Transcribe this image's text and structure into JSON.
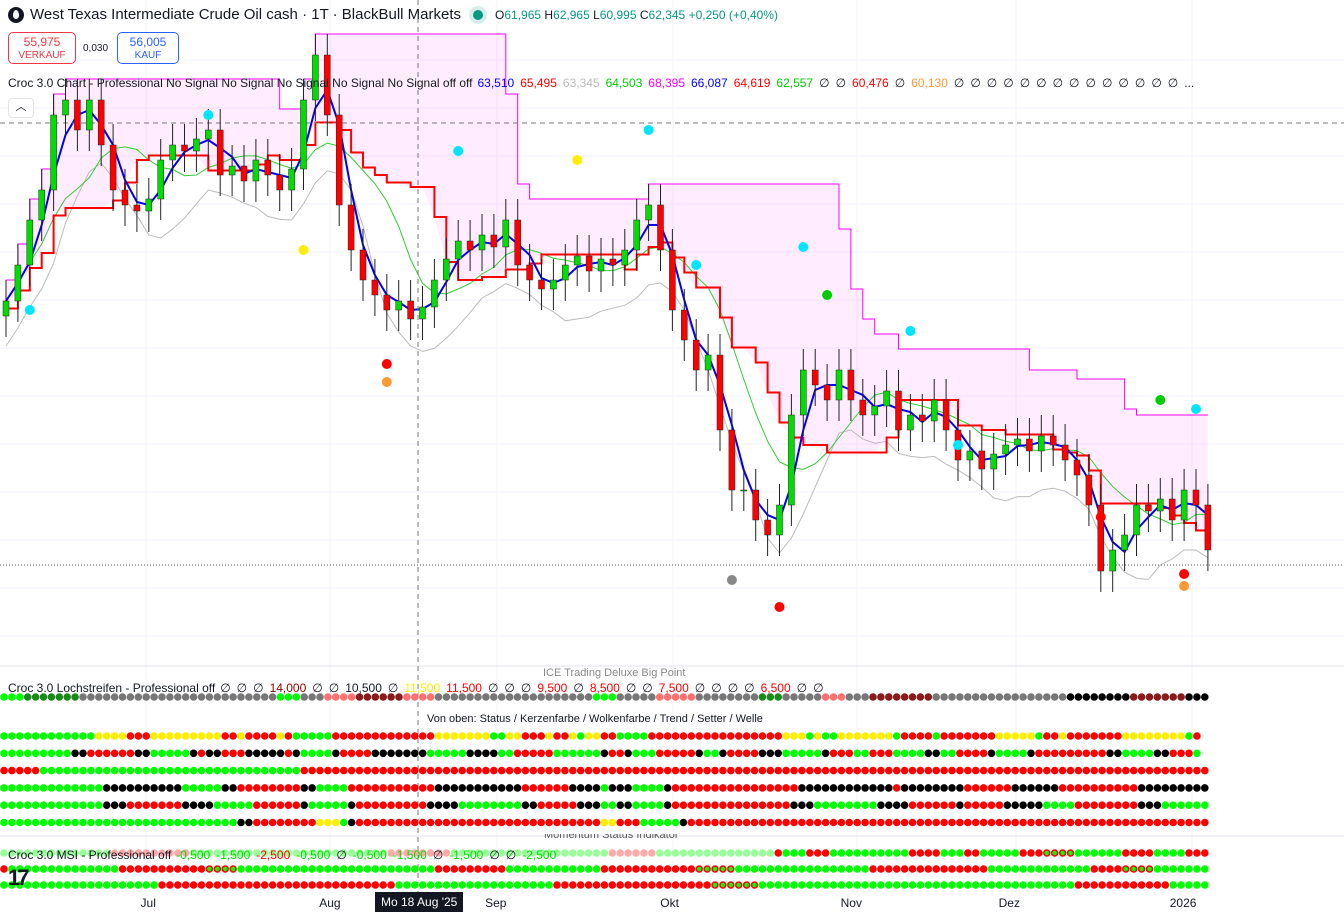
{
  "header": {
    "title": "West Texas Intermediate Crude Oil cash · 1T · BlackBull Markets",
    "ohlc": {
      "o_label": "O",
      "o": "61,965",
      "h_label": "H",
      "h": "62,965",
      "l_label": "L",
      "l": "60,995",
      "c_label": "C",
      "c": "62,345",
      "change": "+0,250 (+0,40%)"
    },
    "sell": {
      "price": "55,975",
      "label": "VERKAUF"
    },
    "spread": "0,030",
    "buy": {
      "price": "56,005",
      "label": "KAUF"
    }
  },
  "collapse_glyph": "︿",
  "tv_logo": "17",
  "indicators": {
    "chart": {
      "name": "Croc 3.0 Chart - Professional No Signal No Signal No Signal No Signal No Signal off off",
      "values": [
        {
          "v": "63,510",
          "color": "#0000ff"
        },
        {
          "v": "65,495",
          "color": "#ff0000"
        },
        {
          "v": "63,345",
          "color": "#bbbbbb"
        },
        {
          "v": "64,503",
          "color": "#00cc00"
        },
        {
          "v": "68,395",
          "color": "#ff00ff"
        },
        {
          "v": "66,087",
          "color": "#0000ff"
        },
        {
          "v": "64,619",
          "color": "#ff0000"
        },
        {
          "v": "62,557",
          "color": "#00cc00"
        },
        {
          "v": "∅",
          "color": "#131722"
        },
        {
          "v": "∅",
          "color": "#131722"
        },
        {
          "v": "60,476",
          "color": "#ff0000"
        },
        {
          "v": "∅",
          "color": "#131722"
        },
        {
          "v": "60,130",
          "color": "#ff9933"
        },
        {
          "v": "∅",
          "color": "#131722"
        },
        {
          "v": "∅",
          "color": "#131722"
        },
        {
          "v": "∅",
          "color": "#131722"
        },
        {
          "v": "∅",
          "color": "#131722"
        },
        {
          "v": "∅",
          "color": "#131722"
        },
        {
          "v": "∅",
          "color": "#131722"
        },
        {
          "v": "∅",
          "color": "#131722"
        },
        {
          "v": "∅",
          "color": "#131722"
        },
        {
          "v": "∅",
          "color": "#131722"
        },
        {
          "v": "∅",
          "color": "#131722"
        },
        {
          "v": "∅",
          "color": "#131722"
        },
        {
          "v": "∅",
          "color": "#131722"
        },
        {
          "v": "∅",
          "color": "#131722"
        },
        {
          "v": "∅",
          "color": "#131722"
        },
        {
          "v": "...",
          "color": "#131722"
        }
      ]
    },
    "lochstreifen": {
      "name": "Croc 3.0 Lochstreifen - Professional off",
      "values": [
        {
          "v": "∅",
          "color": "#131722"
        },
        {
          "v": "∅",
          "color": "#131722"
        },
        {
          "v": "∅",
          "color": "#131722"
        },
        {
          "v": "14,000",
          "color": "#8b0000"
        },
        {
          "v": "∅",
          "color": "#131722"
        },
        {
          "v": "∅",
          "color": "#131722"
        },
        {
          "v": "10,500",
          "color": "#131722"
        },
        {
          "v": "∅",
          "color": "#131722"
        },
        {
          "v": "11,500",
          "color": "#ffee00"
        },
        {
          "v": "11,500",
          "color": "#ff0000"
        },
        {
          "v": "∅",
          "color": "#131722"
        },
        {
          "v": "∅",
          "color": "#131722"
        },
        {
          "v": "∅",
          "color": "#131722"
        },
        {
          "v": "9,500",
          "color": "#ff0000"
        },
        {
          "v": "∅",
          "color": "#131722"
        },
        {
          "v": "8,500",
          "color": "#ff0000"
        },
        {
          "v": "∅",
          "color": "#131722"
        },
        {
          "v": "∅",
          "color": "#131722"
        },
        {
          "v": "7,500",
          "color": "#ff0000"
        },
        {
          "v": "∅",
          "color": "#131722"
        },
        {
          "v": "∅",
          "color": "#131722"
        },
        {
          "v": "∅",
          "color": "#131722"
        },
        {
          "v": "∅",
          "color": "#131722"
        },
        {
          "v": "6,500",
          "color": "#ff0000"
        },
        {
          "v": "∅",
          "color": "#131722"
        },
        {
          "v": "∅",
          "color": "#131722"
        }
      ],
      "overlay_title": "ICE Trading Deluxe Big Point",
      "rows_note": "Von oben: Status / Kerzenfarbe / Wolkenfarbe / Trend / Setter / Welle"
    },
    "msi": {
      "name": "Croc 3.0 MSI - Professional off",
      "values": [
        {
          "v": "-0,500",
          "color": "#00dd00"
        },
        {
          "v": "-1,500",
          "color": "#00dd00"
        },
        {
          "v": "-2,500",
          "color": "#ff0000"
        },
        {
          "v": "-0,500",
          "color": "#00dd00"
        },
        {
          "v": "∅",
          "color": "#131722"
        },
        {
          "v": "-0,500",
          "color": "#00dd00"
        },
        {
          "v": "-1,500",
          "color": "#00dd00"
        },
        {
          "v": "∅",
          "color": "#131722"
        },
        {
          "v": "-1,500",
          "color": "#00dd00"
        },
        {
          "v": "∅",
          "color": "#131722"
        },
        {
          "v": "∅",
          "color": "#131722"
        },
        {
          "v": "-2,500",
          "color": "#00dd00"
        }
      ],
      "overlay_title": "Momentum Status Indikator"
    }
  },
  "xaxis": {
    "labels": [
      {
        "t": "Jul",
        "bar": 18
      },
      {
        "t": "Aug",
        "bar": 41
      },
      {
        "t": "Sep",
        "bar": 62
      },
      {
        "t": "Okt",
        "bar": 84
      },
      {
        "t": "Nov",
        "bar": 107
      },
      {
        "t": "Dez",
        "bar": 127
      },
      {
        "t": "2026",
        "bar": 149
      }
    ],
    "crosshair_label": "Mo 18 Aug '25"
  },
  "dot_colors": {
    "g": "#00ff00",
    "y": "#ffee00",
    "r": "#ff0000",
    "k": "#000000",
    "a": "#777777",
    "G": "#1a8a1a",
    "R": "#8b1a1a",
    "p": "#ff7070",
    "L": "#99ff99",
    "P": "#ffaaaa",
    "o": "#ff0000"
  },
  "chart_data": {
    "type": "candlestick",
    "current_price": 56.0,
    "closes": [
      64.8,
      66,
      67.5,
      68.5,
      71,
      71.5,
      70.5,
      71.5,
      70,
      68.5,
      68,
      67.8,
      68.2,
      69.5,
      70,
      69.8,
      70.2,
      70.5,
      69,
      69.3,
      68.8,
      69.5,
      69,
      68.5,
      69.2,
      71.5,
      73,
      71,
      68,
      66.5,
      65.5,
      65,
      64.5,
      64.8,
      64.2,
      64.6,
      65.5,
      66.2,
      66.8,
      66.5,
      67,
      66.6,
      67.5,
      66,
      65.5,
      65.2,
      65.5,
      66,
      66.3,
      65.8,
      66.2,
      66,
      66.5,
      67.5,
      68,
      66.5,
      64.5,
      63.5,
      62.5,
      63,
      60.5,
      58.5,
      58.5,
      57.5,
      57,
      58,
      61,
      62.5,
      62,
      61.5,
      62.5,
      61.5,
      61,
      61.3,
      61.8,
      60.5,
      61,
      60.8,
      61.5,
      60.5,
      59.5,
      59.8,
      59.2,
      59.7,
      60,
      60.2,
      59.8,
      60.3,
      60,
      59.5,
      59,
      58,
      55.8,
      56.5,
      57,
      58,
      57.8,
      58.2,
      57.5,
      58.5,
      58,
      56.5
    ],
    "markers": [
      {
        "bar": 2,
        "price": 64.5,
        "color": "#00e5ff"
      },
      {
        "bar": 17,
        "price": 71,
        "color": "#00e5ff"
      },
      {
        "bar": 25,
        "price": 66.5,
        "color": "#ffee00"
      },
      {
        "bar": 38,
        "price": 69.8,
        "color": "#00e5ff"
      },
      {
        "bar": 32,
        "price": 62.7,
        "color": "#ff0000"
      },
      {
        "bar": 32,
        "price": 62.1,
        "color": "#ff9933"
      },
      {
        "bar": 48,
        "price": 69.5,
        "color": "#ffee00"
      },
      {
        "bar": 54,
        "price": 70.5,
        "color": "#00e5ff"
      },
      {
        "bar": 58,
        "price": 66,
        "color": "#00e5ff"
      },
      {
        "bar": 67,
        "price": 66.6,
        "color": "#00e5ff"
      },
      {
        "bar": 69,
        "price": 65,
        "color": "#00cc00"
      },
      {
        "bar": 61,
        "price": 55.5,
        "color": "#888888"
      },
      {
        "bar": 65,
        "price": 54.6,
        "color": "#ff0000"
      },
      {
        "bar": 76,
        "price": 63.8,
        "color": "#00e5ff"
      },
      {
        "bar": 80,
        "price": 60,
        "color": "#00e5ff"
      },
      {
        "bar": 97,
        "price": 61.5,
        "color": "#00cc00"
      },
      {
        "bar": 92,
        "price": 57.6,
        "color": "#ff0000"
      },
      {
        "bar": 99,
        "price": 55.7,
        "color": "#ff0000"
      },
      {
        "bar": 99,
        "price": 55.3,
        "color": "#ff9933"
      },
      {
        "bar": 100,
        "price": 61.2,
        "color": "#00e5ff"
      }
    ]
  },
  "status_rows": [
    "g12 y4 r3 y9 r2 y1 r4 y1 r1 g5 r13 y7 g2 y2 r3 y1 r2 y1 g1 y2 r2 g4 r17 y3 g1 y1 g2 y7 g1 r4 g1 r7 y5 g1 r2 y1 r7 y8 g1 r1",
    "g9 k2 r6 k2 g5 k1 r1 k2 r3 k5 r1 k1 g4 k1 r4 k7 g5 k4 g2 r5 g6 k1 r2 k1 g3 r5 k1 g2 k1 r4 k3 g5 k1 r3 g2 r3 g4 k2 g2 r4 k1 g4 k1 r9 k2 g4 k2 r3 g1",
    "r5 g33 r116",
    "g13 k10 g5 k2 r8 k2 g4 r11 k11 r6 k4 g1 k3 g4 k1 r16 k12 r1 k8 r6 k6 r10 k9",
    "g13 k3 r7 k4 g5 r6 k1 g5 k1 r9 k4 g8 k2 r5 k3 g2 k2 g4 k1 r15 k3 g8 k4 r6 k1 r5 k5 g4 r8 k3 g6",
    "g30 k2 r8 y3 g1 k1 r31 y2 r3 g5 k1 r67"
  ],
  "lochstreifen_row": "g3 G7 a25 g3 a3 p4 R6 p4 a20 g3 a5 p5 a8 G3 a5 p3 a3 R8 a17 k8 R7 k11",
  "msi_rows": [
    "L14 P10 L25 P8 L20 P6 L15 r1 g3 r3 g10 r4 g3 r2 g5 r3 o4 g6 r4 g4 r3 g3 r3 g5 r8",
    "r1 g14 r11 o4 g25 r9 g12 r12 o5 g17 r15 g13 r4 o4 g9 r6 g7 r8 g6",
    "g20 r5 r25 g20 r20 o6 g40 r12 g10 o5 r12"
  ]
}
